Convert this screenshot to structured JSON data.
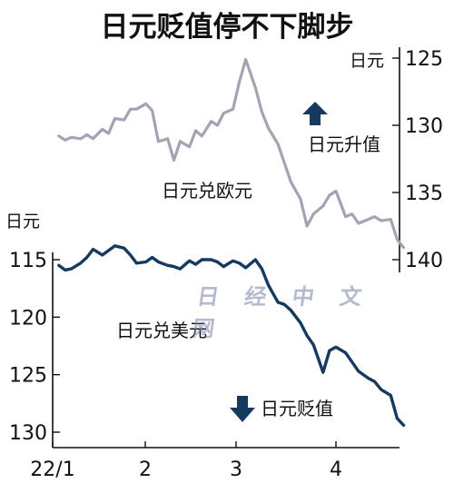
{
  "title": "日元贬值停不下脚步",
  "watermark": "日 经 中 文 网",
  "colors": {
    "eur": "#a3a4b3",
    "usd": "#163a5f",
    "axis": "#111111"
  },
  "chart_data": [
    {
      "type": "line",
      "name": "日元兑欧元",
      "unit_label": "日元",
      "axis_side": "right",
      "y_inverted": true,
      "ylim": [
        124.2,
        140.3
      ],
      "yticks": [
        125,
        130,
        135,
        140
      ],
      "annotation": "日元升值",
      "annotation_icon": "up-arrow-icon",
      "x": [
        "2022-01-03",
        "2022-01-05",
        "2022-01-07",
        "2022-01-10",
        "2022-01-12",
        "2022-01-14",
        "2022-01-17",
        "2022-01-19",
        "2022-01-21",
        "2022-01-24",
        "2022-01-26",
        "2022-01-28",
        "2022-01-31",
        "2022-02-02",
        "2022-02-04",
        "2022-02-07",
        "2022-02-09",
        "2022-02-11",
        "2022-02-14",
        "2022-02-16",
        "2022-02-18",
        "2022-02-21",
        "2022-02-23",
        "2022-02-25",
        "2022-02-28",
        "2022-03-02",
        "2022-03-04",
        "2022-03-07",
        "2022-03-09",
        "2022-03-11",
        "2022-03-14",
        "2022-03-16",
        "2022-03-18",
        "2022-03-21",
        "2022-03-23",
        "2022-03-25",
        "2022-03-28",
        "2022-03-30",
        "2022-04-01",
        "2022-04-04",
        "2022-04-06",
        "2022-04-08",
        "2022-04-11",
        "2022-04-13",
        "2022-04-15",
        "2022-04-18",
        "2022-04-20",
        "2022-04-22"
      ],
      "values": [
        130.8,
        131.1,
        130.9,
        131.0,
        130.7,
        131.0,
        130.3,
        130.6,
        129.5,
        129.6,
        128.8,
        128.8,
        128.4,
        128.9,
        131.2,
        131.0,
        132.6,
        131.2,
        131.6,
        130.4,
        130.8,
        129.7,
        130.0,
        129.1,
        128.8,
        126.8,
        125.1,
        127.2,
        129.0,
        130.2,
        131.4,
        132.8,
        134.2,
        135.5,
        137.5,
        136.6,
        136.0,
        135.2,
        134.9,
        136.8,
        136.6,
        137.3,
        137.0,
        136.8,
        137.1,
        137.0,
        138.5,
        139.1
      ]
    },
    {
      "type": "line",
      "name": "日元兑美元",
      "unit_label": "日元",
      "axis_side": "left",
      "y_inverted": true,
      "ylim": [
        113.0,
        131.0
      ],
      "yticks": [
        115,
        120,
        125,
        130
      ],
      "annotation": "日元贬值",
      "annotation_icon": "down-arrow-icon",
      "xticks": [
        "22/1",
        "2",
        "3",
        "4"
      ],
      "x": [
        "2022-01-03",
        "2022-01-05",
        "2022-01-07",
        "2022-01-10",
        "2022-01-12",
        "2022-01-14",
        "2022-01-17",
        "2022-01-19",
        "2022-01-21",
        "2022-01-24",
        "2022-01-26",
        "2022-01-28",
        "2022-01-31",
        "2022-02-02",
        "2022-02-04",
        "2022-02-07",
        "2022-02-09",
        "2022-02-11",
        "2022-02-14",
        "2022-02-16",
        "2022-02-18",
        "2022-02-21",
        "2022-02-23",
        "2022-02-25",
        "2022-02-28",
        "2022-03-02",
        "2022-03-04",
        "2022-03-07",
        "2022-03-09",
        "2022-03-11",
        "2022-03-14",
        "2022-03-16",
        "2022-03-18",
        "2022-03-21",
        "2022-03-23",
        "2022-03-25",
        "2022-03-28",
        "2022-03-30",
        "2022-04-01",
        "2022-04-04",
        "2022-04-06",
        "2022-04-08",
        "2022-04-11",
        "2022-04-13",
        "2022-04-15",
        "2022-04-18",
        "2022-04-20",
        "2022-04-22"
      ],
      "values": [
        115.5,
        115.9,
        115.8,
        115.3,
        114.8,
        114.1,
        114.6,
        114.2,
        113.8,
        114.0,
        114.6,
        115.3,
        115.2,
        114.8,
        115.2,
        115.5,
        115.6,
        115.8,
        115.1,
        115.4,
        115.0,
        115.0,
        115.2,
        115.6,
        115.1,
        115.3,
        115.7,
        115.0,
        115.8,
        117.2,
        118.7,
        118.9,
        119.4,
        120.5,
        121.6,
        122.4,
        124.8,
        122.9,
        122.6,
        123.1,
        123.9,
        124.7,
        125.3,
        125.6,
        126.3,
        126.8,
        128.8,
        129.4
      ]
    }
  ]
}
